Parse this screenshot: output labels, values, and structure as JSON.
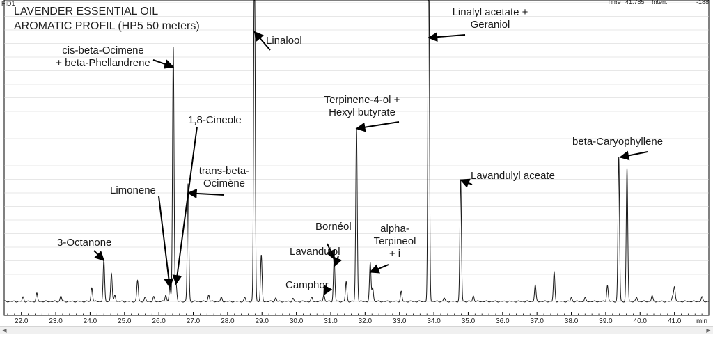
{
  "header": {
    "channel": "FID1",
    "time_label": "Time",
    "time_value": "41.785",
    "inten_label": "Inten.",
    "inten_value": "-188"
  },
  "chart_data": {
    "type": "line",
    "title_lines": [
      "LAVENDER ESSENTIAL OIL",
      "AROMATIC PROFIL (HP5 50 meters)"
    ],
    "xlabel": "min",
    "ylabel": "",
    "xlim": [
      21.5,
      42.0
    ],
    "xticks": [
      22.0,
      23.0,
      24.0,
      25.0,
      26.0,
      27.0,
      28.0,
      29.0,
      30.0,
      31.0,
      32.0,
      33.0,
      34.0,
      35.0,
      36.0,
      37.0,
      38.0,
      39.0,
      40.0,
      41.0
    ],
    "ylim": [
      0,
      100
    ],
    "grid": true,
    "peaks": [
      {
        "t": 22.05,
        "h": 1.5
      },
      {
        "t": 22.45,
        "h": 2.7
      },
      {
        "t": 23.15,
        "h": 1.9
      },
      {
        "t": 24.05,
        "h": 4.8
      },
      {
        "t": 24.4,
        "h": 14.0
      },
      {
        "t": 24.62,
        "h": 9.6
      },
      {
        "t": 24.72,
        "h": 2.3
      },
      {
        "t": 25.38,
        "h": 7.2
      },
      {
        "t": 25.6,
        "h": 1.3
      },
      {
        "t": 25.85,
        "h": 1.5
      },
      {
        "t": 26.2,
        "h": 2.3
      },
      {
        "t": 26.32,
        "h": 4.8
      },
      {
        "t": 26.42,
        "h": 87.0
      },
      {
        "t": 26.5,
        "h": 6.0
      },
      {
        "t": 26.85,
        "h": 40.3
      },
      {
        "t": 27.45,
        "h": 2.3
      },
      {
        "t": 27.82,
        "h": 1.3
      },
      {
        "t": 28.5,
        "h": 1.3
      },
      {
        "t": 28.78,
        "h": 125.0
      },
      {
        "t": 28.98,
        "h": 15.7
      },
      {
        "t": 29.4,
        "h": 1.2
      },
      {
        "t": 29.9,
        "h": 1.0
      },
      {
        "t": 30.45,
        "h": 1.3
      },
      {
        "t": 30.8,
        "h": 2.3
      },
      {
        "t": 31.1,
        "h": 14.5
      },
      {
        "t": 31.45,
        "h": 6.7
      },
      {
        "t": 31.75,
        "h": 59.0
      },
      {
        "t": 32.15,
        "h": 13.0
      },
      {
        "t": 32.22,
        "h": 4.8
      },
      {
        "t": 33.05,
        "h": 3.4
      },
      {
        "t": 33.85,
        "h": 125.0
      },
      {
        "t": 34.3,
        "h": 1.2
      },
      {
        "t": 34.78,
        "h": 41.5
      },
      {
        "t": 35.15,
        "h": 1.9
      },
      {
        "t": 36.95,
        "h": 5.5
      },
      {
        "t": 37.5,
        "h": 10.0
      },
      {
        "t": 38.0,
        "h": 1.3
      },
      {
        "t": 38.4,
        "h": 1.2
      },
      {
        "t": 39.05,
        "h": 5.5
      },
      {
        "t": 39.38,
        "h": 49.2
      },
      {
        "t": 39.62,
        "h": 45.4
      },
      {
        "t": 39.9,
        "h": 1.3
      },
      {
        "t": 40.35,
        "h": 1.9
      },
      {
        "t": 40.95,
        "h": 1.9
      },
      {
        "t": 41.0,
        "h": 5.0
      },
      {
        "t": 41.8,
        "h": 1.5
      }
    ],
    "annotations": [
      {
        "lines": [
          "3-Octanone"
        ],
        "t": 24.4,
        "h": 14.0
      },
      {
        "lines": [
          "Limonene"
        ],
        "t": 26.32,
        "h": 4.8
      },
      {
        "lines": [
          "cis-beta-Ocimene",
          "+ beta-Phellandrene"
        ],
        "t": 26.42,
        "h": 80.0
      },
      {
        "lines": [
          "1,8-Cineole"
        ],
        "t": 26.5,
        "h": 6.0
      },
      {
        "lines": [
          "trans-beta-",
          "Ocimène"
        ],
        "t": 26.85,
        "h": 37.0
      },
      {
        "lines": [
          "Linalool"
        ],
        "t": 28.78,
        "h": 92.0
      },
      {
        "lines": [
          "Bornéol"
        ],
        "t": 31.1,
        "h": 14.5
      },
      {
        "lines": [
          "Lavandulol"
        ],
        "t": 31.1,
        "h": 12.0
      },
      {
        "lines": [
          "Camphor"
        ],
        "t": 30.8,
        "h": 2.3
      },
      {
        "lines": [
          "Terpinene-4-ol +",
          "Hexyl butyrate"
        ],
        "t": 31.75,
        "h": 59.0
      },
      {
        "lines": [
          "alpha-",
          "Terpineol",
          "+ i"
        ],
        "t": 32.15,
        "h": 10.0
      },
      {
        "lines": [
          "Linalyl acetate +",
          "Geraniol"
        ],
        "t": 33.85,
        "h": 90.0
      },
      {
        "lines": [
          "Lavandulyl aceate"
        ],
        "t": 34.78,
        "h": 41.5
      },
      {
        "lines": [
          "beta-Caryophyllene"
        ],
        "t": 39.38,
        "h": 49.2
      }
    ]
  }
}
